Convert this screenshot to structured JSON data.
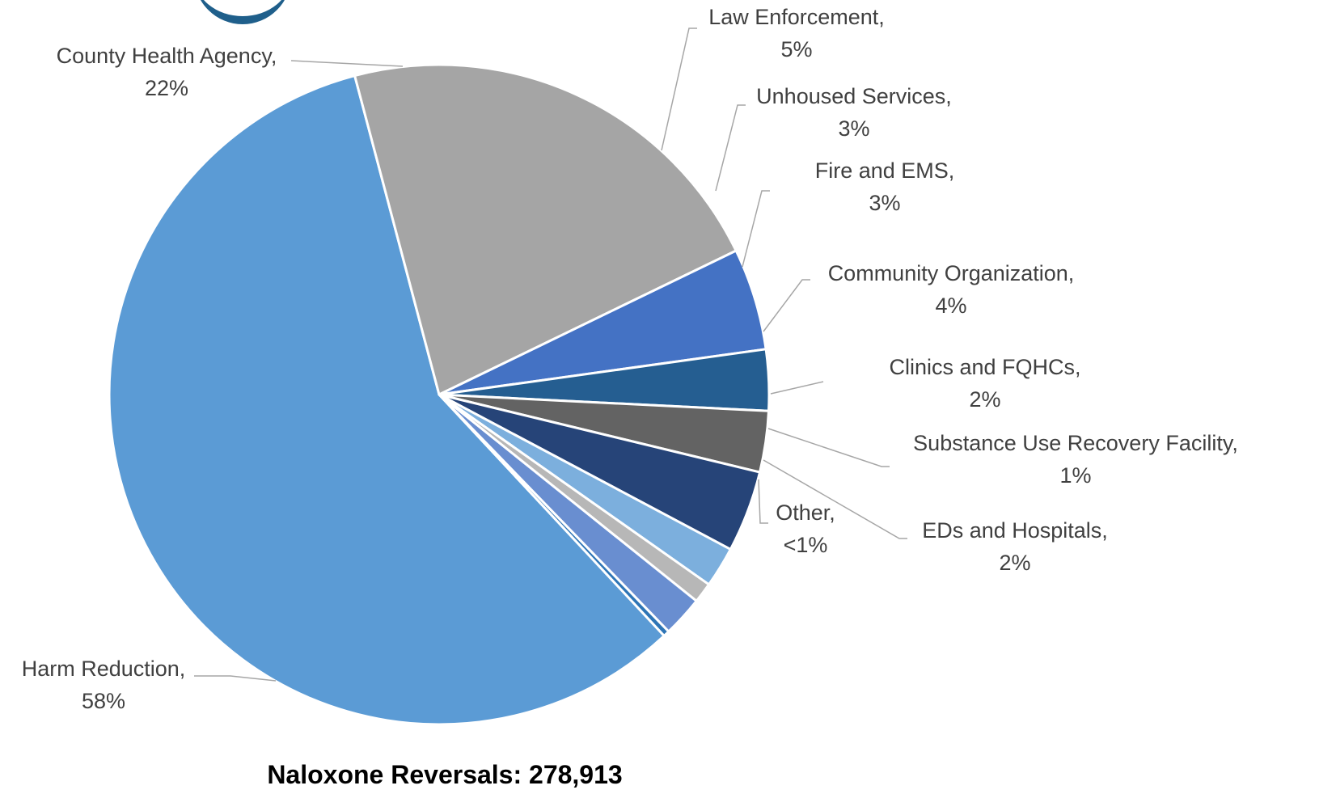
{
  "chart_data": {
    "type": "pie",
    "title": "Naloxone Reversals: 278,913",
    "slices": [
      {
        "name": "Harm Reduction",
        "label": "Harm Reduction,",
        "pct_label": "58%",
        "value": 58,
        "color": "#5b9bd5"
      },
      {
        "name": "County Health Agency",
        "label": "County Health Agency,",
        "pct_label": "22%",
        "value": 22,
        "color": "#a5a5a5"
      },
      {
        "name": "Law Enforcement",
        "label": "Law Enforcement,",
        "pct_label": "5%",
        "value": 5,
        "color": "#4472c4"
      },
      {
        "name": "Unhoused Services",
        "label": "Unhoused Services,",
        "pct_label": "3%",
        "value": 3,
        "color": "#255e91"
      },
      {
        "name": "Fire and EMS",
        "label": "Fire and EMS,",
        "pct_label": "3%",
        "value": 3,
        "color": "#636363"
      },
      {
        "name": "Community Organization",
        "label": "Community Organization,",
        "pct_label": "4%",
        "value": 4,
        "color": "#264478"
      },
      {
        "name": "Clinics and FQHCs",
        "label": "Clinics and FQHCs,",
        "pct_label": "2%",
        "value": 2,
        "color": "#7cafdd"
      },
      {
        "name": "Substance Use Recovery Facility",
        "label": "Substance Use Recovery Facility,",
        "pct_label": "1%",
        "value": 1,
        "color": "#b7b7b7"
      },
      {
        "name": "EDs and Hospitals",
        "label": "EDs and Hospitals,",
        "pct_label": "2%",
        "value": 2,
        "color": "#698ed0"
      },
      {
        "name": "Other",
        "label": "Other,",
        "pct_label": "<1%",
        "value": 0.3,
        "color": "#2e75b6"
      }
    ]
  }
}
